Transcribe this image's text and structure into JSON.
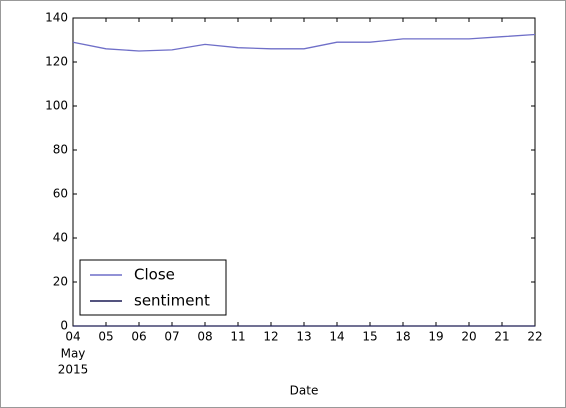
{
  "chart_data": {
    "type": "line",
    "xlabel": "Date",
    "categories": [
      "04",
      "05",
      "06",
      "07",
      "08",
      "11",
      "12",
      "13",
      "14",
      "15",
      "18",
      "19",
      "20",
      "21",
      "22"
    ],
    "x_month_label": "May",
    "x_year_label": "2015",
    "series": [
      {
        "name": "Close",
        "color": "#6f6fc8",
        "values": [
          129,
          126,
          125,
          125.5,
          128,
          126.5,
          126,
          126,
          129,
          129,
          130.5,
          130.5,
          130.5,
          131.5,
          132.5
        ]
      },
      {
        "name": "sentiment",
        "color": "#1c1c55",
        "values": [
          0,
          0,
          0,
          0,
          0,
          0,
          0,
          0,
          0,
          0,
          0,
          0,
          0,
          0,
          0
        ]
      }
    ],
    "ylim": [
      0,
      140
    ],
    "yticks": [
      0,
      20,
      40,
      60,
      80,
      100,
      120,
      140
    ],
    "legend": "lower left"
  }
}
